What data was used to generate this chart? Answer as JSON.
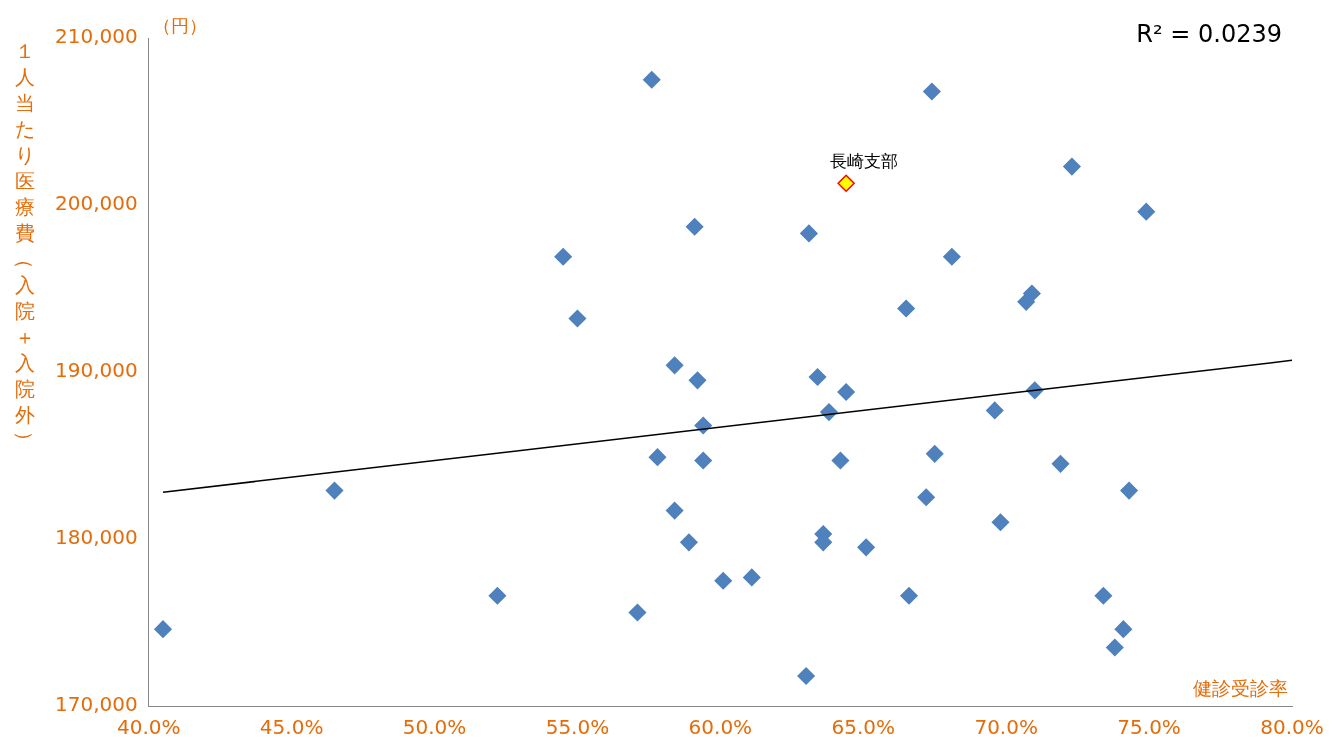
{
  "chart_data": {
    "type": "scatter",
    "xlabel": "健診受診率",
    "ylabel": "１人当たり医療費（入院＋入院外）",
    "annotations": [
      "R² = 0.0239",
      "（円）",
      {
        "text": "長崎支部",
        "x": 64.4,
        "y": 201300
      }
    ],
    "xlim": [
      40,
      80
    ],
    "xticks": [
      {
        "value": 40,
        "label": "40.0%"
      },
      {
        "value": 45,
        "label": "45.0%"
      },
      {
        "value": 50,
        "label": "50.0%"
      },
      {
        "value": 55,
        "label": "55.0%"
      },
      {
        "value": 60,
        "label": "60.0%"
      },
      {
        "value": 65,
        "label": "65.0%"
      },
      {
        "value": 70,
        "label": "70.0%"
      },
      {
        "value": 75,
        "label": "75.0%"
      },
      {
        "value": 80,
        "label": "80.0%"
      }
    ],
    "ylim": [
      170000,
      210000
    ],
    "yticks": [
      {
        "value": 170000,
        "label": "170,000"
      },
      {
        "value": 180000,
        "label": "180,000"
      },
      {
        "value": 190000,
        "label": "190,000"
      },
      {
        "value": 200000,
        "label": "200,000"
      },
      {
        "value": 210000,
        "label": "210,000"
      }
    ],
    "marker": "diamond",
    "grid": false,
    "legend": false,
    "series": [
      {
        "color": "#4f81bd",
        "x": [
          40.5,
          46.5,
          52.2,
          54.5,
          55.0,
          57.1,
          57.6,
          57.8,
          58.4,
          58.4,
          58.9,
          59.1,
          59.2,
          59.4,
          59.4,
          60.1,
          61.1,
          63.0,
          63.1,
          63.4,
          63.6,
          63.6,
          63.8,
          64.2,
          64.4,
          65.1,
          66.5,
          66.6,
          67.2,
          67.4,
          67.5,
          68.1,
          69.6,
          69.8,
          70.7,
          70.9,
          71.0,
          71.9,
          72.3,
          73.4,
          73.8,
          74.1,
          74.3,
          74.9
        ],
        "values": [
          174600,
          182900,
          176600,
          196900,
          193200,
          175600,
          207500,
          184900,
          190400,
          181700,
          179800,
          198700,
          189500,
          186800,
          184700,
          177500,
          177700,
          171800,
          198300,
          189700,
          180300,
          179800,
          187600,
          184700,
          188800,
          179500,
          193800,
          176600,
          182500,
          206800,
          185100,
          196900,
          187700,
          181000,
          194200,
          194700,
          188900,
          184500,
          202300,
          176600,
          173500,
          174600,
          182900,
          199600
        ]
      },
      {
        "color": "#ffff00",
        "x": [
          64.4
        ],
        "values": [
          201300
        ]
      },
      {
        "type": "line",
        "marker": "none",
        "color": "#000000",
        "x": [
          40.5,
          80
        ],
        "values": [
          182800,
          190700
        ]
      }
    ]
  }
}
